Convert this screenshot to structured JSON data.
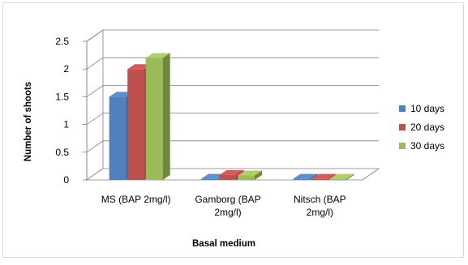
{
  "chart_data": {
    "type": "bar",
    "three_d": true,
    "title": "",
    "xlabel": "Basal medium",
    "ylabel": "Number of shoots",
    "categories": [
      [
        "MS (BAP 2mg/l)"
      ],
      [
        "Gamborg (BAP",
        "2mg/l)"
      ],
      [
        "Nitsch (BAP",
        "2mg/l)"
      ]
    ],
    "series": [
      {
        "name": "10 days",
        "values": [
          1.5,
          0.02,
          0.02
        ],
        "color": "#4f81bd"
      },
      {
        "name": "20 days",
        "values": [
          2.0,
          0.09,
          0.02
        ],
        "color": "#c0504d"
      },
      {
        "name": "30 days",
        "values": [
          2.2,
          0.08,
          0.02
        ],
        "color": "#9bbb59"
      }
    ],
    "ylim": [
      0,
      2.5
    ],
    "yticks": [
      "0",
      "0.5",
      "1",
      "1.5",
      "2",
      "2.5"
    ],
    "grid": true,
    "legend_position": "right"
  }
}
